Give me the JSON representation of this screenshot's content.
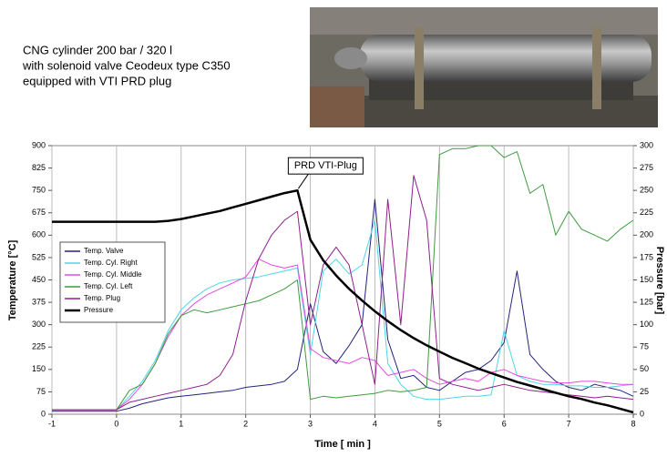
{
  "caption_lines": [
    "CNG cylinder 200 bar / 320 l",
    "with solenoid valve Ceodeux type C350",
    "equipped with VTI PRD plug"
  ],
  "chart_data": {
    "type": "line",
    "xlabel": "Time [ min ]",
    "ylabel": "Temperature [°C]",
    "y2label": "Pressure [bar]",
    "annotation": "PRD VTI-Plug",
    "x": [
      -1,
      -0.8,
      -0.6,
      -0.4,
      -0.2,
      0,
      0.2,
      0.4,
      0.6,
      0.8,
      1,
      1.2,
      1.4,
      1.6,
      1.8,
      2,
      2.2,
      2.4,
      2.6,
      2.8,
      3,
      3.2,
      3.4,
      3.6,
      3.8,
      4,
      4.2,
      4.4,
      4.6,
      4.8,
      5,
      5.2,
      5.4,
      5.6,
      5.8,
      6,
      6.2,
      6.4,
      6.6,
      6.8,
      7,
      7.2,
      7.4,
      7.6,
      7.8,
      8
    ],
    "xlim": [
      -1,
      8
    ],
    "xticks": [
      -1,
      0,
      1,
      2,
      3,
      4,
      5,
      6,
      7,
      8
    ],
    "ylim": [
      0,
      900
    ],
    "yticks": [
      0,
      75,
      150,
      225,
      300,
      375,
      450,
      525,
      600,
      675,
      750,
      825,
      900
    ],
    "y2lim": [
      0,
      300
    ],
    "y2ticks": [
      0,
      25,
      50,
      75,
      100,
      125,
      150,
      175,
      200,
      225,
      250,
      275,
      300
    ],
    "grid": "x",
    "series": [
      {
        "name": "Temp. Valve",
        "color": "#23237a",
        "values": [
          10,
          10,
          10,
          10,
          10,
          10,
          20,
          35,
          45,
          55,
          60,
          65,
          70,
          75,
          80,
          90,
          95,
          100,
          110,
          150,
          370,
          210,
          170,
          230,
          300,
          720,
          250,
          120,
          130,
          90,
          80,
          110,
          140,
          150,
          180,
          240,
          480,
          200,
          150,
          110,
          90,
          80,
          100,
          90,
          80,
          60
        ]
      },
      {
        "name": "Temp. Cyl. Right",
        "color": "#4fd6e3",
        "values": [
          15,
          15,
          15,
          15,
          15,
          15,
          60,
          110,
          180,
          280,
          350,
          390,
          420,
          440,
          450,
          455,
          460,
          470,
          480,
          490,
          200,
          480,
          520,
          470,
          500,
          650,
          170,
          100,
          60,
          50,
          50,
          55,
          60,
          60,
          65,
          280,
          130,
          110,
          100,
          100,
          95,
          95,
          90,
          90,
          95,
          100
        ]
      },
      {
        "name": "Temp. Cyl. Middle",
        "color": "#e04be0",
        "values": [
          15,
          15,
          15,
          15,
          15,
          15,
          50,
          100,
          170,
          260,
          330,
          370,
          400,
          420,
          440,
          460,
          520,
          500,
          490,
          500,
          220,
          190,
          180,
          170,
          190,
          180,
          130,
          140,
          150,
          120,
          100,
          110,
          120,
          110,
          140,
          150,
          130,
          120,
          110,
          105,
          105,
          110,
          110,
          105,
          100,
          100
        ]
      },
      {
        "name": "Temp. Cyl. Left",
        "color": "#3f9a3f",
        "values": [
          15,
          15,
          15,
          15,
          15,
          15,
          80,
          100,
          170,
          270,
          330,
          350,
          340,
          350,
          360,
          370,
          380,
          400,
          420,
          450,
          50,
          60,
          55,
          60,
          65,
          70,
          80,
          75,
          80,
          90,
          870,
          890,
          890,
          900,
          900,
          860,
          880,
          740,
          770,
          600,
          680,
          620,
          600,
          580,
          620,
          650
        ]
      },
      {
        "name": "Temp. Plug",
        "color": "#8e1f8e",
        "values": [
          15,
          15,
          15,
          15,
          15,
          15,
          40,
          50,
          60,
          70,
          80,
          90,
          100,
          130,
          200,
          380,
          520,
          600,
          650,
          680,
          300,
          500,
          560,
          500,
          300,
          100,
          720,
          300,
          800,
          650,
          120,
          100,
          90,
          80,
          90,
          100,
          90,
          80,
          75,
          70,
          65,
          60,
          55,
          60,
          55,
          50
        ]
      },
      {
        "name": "Pressure",
        "color": "#000000",
        "axis": "y2",
        "values": [
          215,
          215,
          215,
          215,
          215,
          215,
          215,
          215,
          215,
          216,
          218,
          221,
          224,
          227,
          231,
          235,
          239,
          243,
          247,
          250,
          195,
          172,
          155,
          140,
          127,
          115,
          104,
          94,
          85,
          77,
          70,
          63,
          57,
          51,
          46,
          41,
          36,
          32,
          28,
          24,
          20,
          17,
          13,
          10,
          6,
          2
        ]
      }
    ]
  }
}
